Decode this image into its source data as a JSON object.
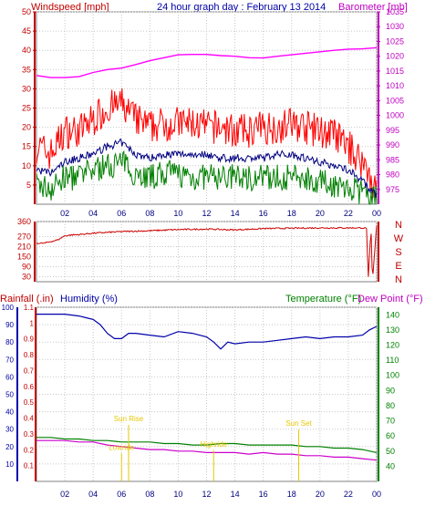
{
  "colors": {
    "wind": "#ff0000",
    "gust": "#ff0000",
    "avg_wind": "#000080",
    "wind_dark": "#008000",
    "baro": "#ff00ff",
    "dir": "#cc0000",
    "rain": "#cc0000",
    "humidity": "#0000aa",
    "temp": "#008000",
    "dew": "#cc00cc",
    "sun": "#e6c800",
    "frame": "#808080",
    "grid": "#c8c8c8"
  },
  "chart_data": [
    {
      "type": "line",
      "title": "24 hour graph day : February 13 2014",
      "left_axis_label": "Windspeed [mph]",
      "right_axis_label": "Barometer [mb]",
      "x_tick_labels": [
        "02",
        "04",
        "06",
        "08",
        "10",
        "12",
        "14",
        "16",
        "18",
        "20",
        "22",
        "00"
      ],
      "x_range": [
        0,
        24
      ],
      "ylim_left": [
        0,
        50
      ],
      "y_ticks_left": [
        5,
        10,
        15,
        20,
        25,
        30,
        35,
        40,
        45,
        50
      ],
      "ylim_right": [
        970,
        1035
      ],
      "y_ticks_right": [
        975,
        980,
        985,
        990,
        995,
        1000,
        1005,
        1010,
        1015,
        1020,
        1025,
        1030,
        1035
      ],
      "series": [
        {
          "role": "barometer",
          "axis": "right",
          "x": [
            0,
            1,
            2,
            3,
            4,
            5,
            6,
            7,
            8,
            9,
            10,
            11,
            12,
            13,
            14,
            15,
            16,
            17,
            18,
            19,
            20,
            21,
            22,
            23,
            24
          ],
          "y": [
            1013.5,
            1012.8,
            1012.8,
            1013.1,
            1014.5,
            1015.5,
            1016.0,
            1017.2,
            1018.5,
            1019.5,
            1020.5,
            1020.6,
            1020.6,
            1020.2,
            1020.0,
            1019.5,
            1019.4,
            1020.0,
            1020.5,
            1021.0,
            1021.5,
            1022.0,
            1022.4,
            1022.5,
            1022.9
          ]
        },
        {
          "role": "gust",
          "axis": "left",
          "x": [
            0,
            1,
            2,
            3,
            4,
            5,
            6,
            7,
            8,
            9,
            10,
            11,
            12,
            13,
            14,
            15,
            16,
            17,
            18,
            19,
            20,
            21,
            22,
            23,
            23.5,
            24
          ],
          "y": [
            15,
            13,
            19,
            19,
            22,
            25,
            26,
            22,
            20,
            21,
            21,
            21,
            20,
            20,
            19,
            19,
            20,
            20,
            21,
            20,
            19,
            18,
            15,
            11,
            8,
            3
          ]
        },
        {
          "role": "average",
          "axis": "left",
          "x": [
            0,
            1,
            2,
            3,
            4,
            5,
            6,
            7,
            8,
            9,
            10,
            11,
            12,
            13,
            14,
            15,
            16,
            17,
            18,
            19,
            20,
            21,
            22,
            23,
            23.5,
            24
          ],
          "y": [
            9,
            8,
            11,
            12,
            13,
            15,
            16,
            13,
            12,
            13,
            13,
            13,
            13,
            12,
            12,
            12,
            12,
            13,
            13,
            12,
            11,
            10,
            9,
            6,
            4,
            2
          ]
        },
        {
          "role": "wind",
          "axis": "left",
          "x": [
            0,
            1,
            2,
            3,
            4,
            5,
            6,
            7,
            8,
            9,
            10,
            11,
            12,
            13,
            14,
            15,
            16,
            17,
            18,
            19,
            20,
            21,
            22,
            23,
            23.5,
            24
          ],
          "y": [
            5,
            4,
            7,
            7,
            9,
            10,
            11,
            8,
            7,
            8,
            8,
            7,
            7,
            7,
            7,
            7,
            7,
            7,
            7,
            7,
            6,
            5,
            4,
            3,
            2,
            1
          ]
        }
      ]
    },
    {
      "type": "line",
      "axis_label_right": [
        "N",
        "W",
        "S",
        "E",
        "N"
      ],
      "ylim": [
        0,
        360
      ],
      "y_ticks": [
        30,
        90,
        150,
        210,
        270,
        360
      ],
      "series": [
        {
          "role": "direction",
          "x": [
            0,
            0.5,
            1,
            1.5,
            2,
            2.5,
            3,
            4,
            6,
            8,
            10,
            12,
            14,
            16,
            18,
            20,
            22,
            23,
            23.3,
            23.4,
            23.6,
            23.7,
            24
          ],
          "y": [
            230,
            230,
            240,
            250,
            275,
            280,
            282,
            290,
            300,
            305,
            312,
            315,
            310,
            318,
            320,
            322,
            322,
            322,
            320,
            0,
            320,
            0,
            340
          ]
        }
      ]
    },
    {
      "type": "line",
      "left_axis_label": "Rainfall (.in)",
      "humidity_axis_label": "Humidity (%)",
      "right_axis_label_temp": "Temperature (°F)",
      "right_axis_label_dew": "Dew Point (°F)",
      "x_tick_labels": [
        "02",
        "04",
        "06",
        "08",
        "10",
        "12",
        "14",
        "16",
        "18",
        "20",
        "22",
        "00"
      ],
      "ylim_rain": [
        0,
        1.1
      ],
      "y_ticks_rain": [
        "0.1",
        "0.2",
        "0.3",
        "0.4",
        "0.5",
        "0.6",
        "0.7",
        "0.8",
        "0.9",
        "1",
        "1.1"
      ],
      "ylim_humidity": [
        0,
        100
      ],
      "y_ticks_humidity": [
        10,
        20,
        30,
        40,
        50,
        60,
        70,
        80,
        90,
        100
      ],
      "ylim_temp": [
        30,
        145
      ],
      "y_ticks_temp": [
        40,
        50,
        60,
        70,
        80,
        90,
        100,
        110,
        120,
        130,
        140
      ],
      "annotations": [
        {
          "text": "Sun Rise",
          "x": 6.5,
          "rain_value": 0.38
        },
        {
          "text": "Lowride",
          "x": 6.0,
          "rain_value": 0.2
        },
        {
          "text": "Highride",
          "x": 12.5,
          "rain_value": 0.22
        },
        {
          "text": "Sun Set",
          "x": 18.5,
          "rain_value": 0.35
        }
      ],
      "series": [
        {
          "role": "humidity",
          "x": [
            0,
            1,
            2,
            3,
            3.5,
            4,
            4.5,
            5,
            5.5,
            6,
            6.5,
            7,
            8,
            9,
            10,
            11,
            12,
            12.5,
            13,
            13.5,
            14,
            15,
            16,
            17,
            18,
            19,
            20,
            21,
            22,
            23,
            23.5,
            24
          ],
          "y": [
            96,
            96,
            96,
            95,
            94,
            93,
            90,
            85,
            82,
            82,
            85,
            85,
            84,
            83,
            86,
            85,
            83,
            80,
            76,
            80,
            79,
            80,
            80,
            81,
            82,
            83,
            82,
            83,
            83,
            84,
            87,
            89
          ]
        },
        {
          "role": "temperature",
          "x": [
            0,
            1,
            2,
            3,
            4,
            5,
            6,
            7,
            8,
            9,
            10,
            11,
            12,
            13,
            14,
            15,
            16,
            17,
            18,
            19,
            20,
            21,
            22,
            23,
            24
          ],
          "y": [
            59,
            59,
            58,
            58,
            57,
            57,
            56,
            56,
            56,
            55,
            55,
            54,
            54,
            55,
            55,
            54,
            54,
            54,
            54,
            53,
            53,
            52,
            52,
            51,
            49
          ]
        },
        {
          "role": "dewpoint",
          "x": [
            0,
            1,
            2,
            3,
            4,
            5,
            6,
            7,
            8,
            9,
            10,
            11,
            12,
            13,
            14,
            15,
            16,
            17,
            18,
            19,
            20,
            21,
            22,
            23,
            24
          ],
          "y": [
            57,
            57,
            57,
            56,
            56,
            54,
            53,
            52,
            51,
            51,
            50,
            50,
            49,
            49,
            49,
            48,
            49,
            48,
            48,
            47,
            47,
            46,
            46,
            45,
            44
          ]
        }
      ]
    }
  ]
}
